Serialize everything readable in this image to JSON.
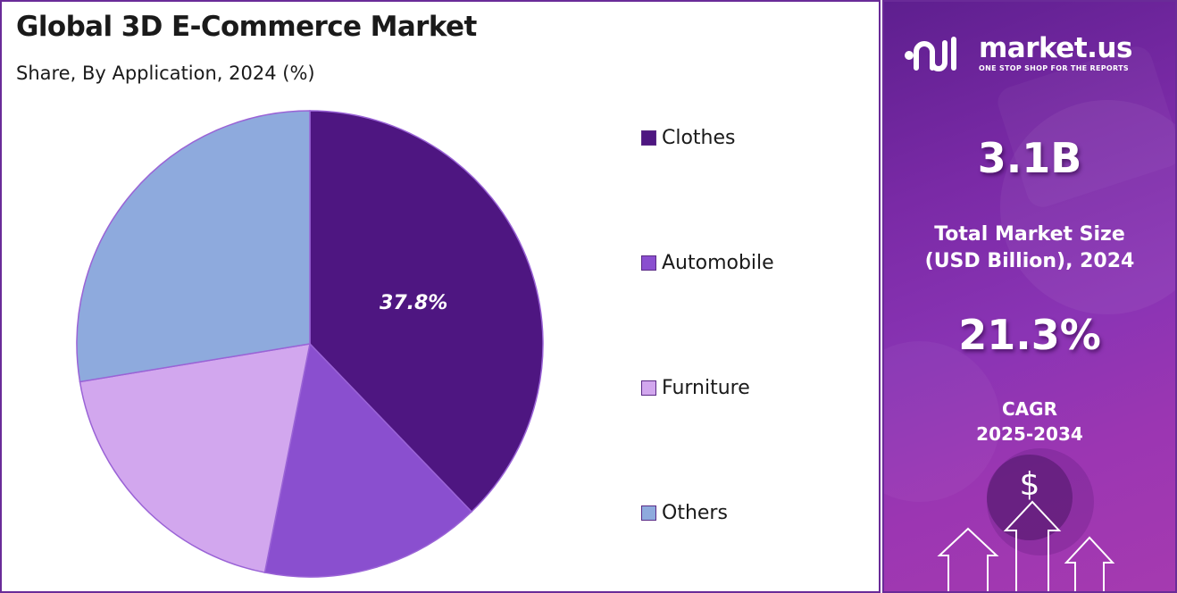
{
  "chart_data": {
    "type": "pie",
    "title": "Global 3D E-Commerce Market",
    "subtitle": "Share, By Application, 2024 (%)",
    "categories": [
      "Clothes",
      "Automobile",
      "Furniture",
      "Others"
    ],
    "values": [
      37.8,
      15.3,
      19.3,
      27.6
    ],
    "data_labels": [
      "37.8%",
      "",
      "",
      ""
    ],
    "colors": [
      "#4e1681",
      "#8a4fcf",
      "#d2a7ee",
      "#8eaadd"
    ],
    "legend_position": "right"
  },
  "summary": {
    "brand_name": "market.us",
    "brand_tagline": "ONE STOP SHOP FOR THE REPORTS",
    "market_size_value": "3.1B",
    "market_size_label_line1": "Total Market Size",
    "market_size_label_line2": "(USD Billion), 2024",
    "cagr_value": "21.3%",
    "cagr_label_line1": "CAGR",
    "cagr_label_line2": "2025-2034",
    "currency_symbol": "$"
  },
  "icons": {
    "brand_logo": "market-us-logo-icon",
    "growth": "growth-arrows-icon"
  }
}
